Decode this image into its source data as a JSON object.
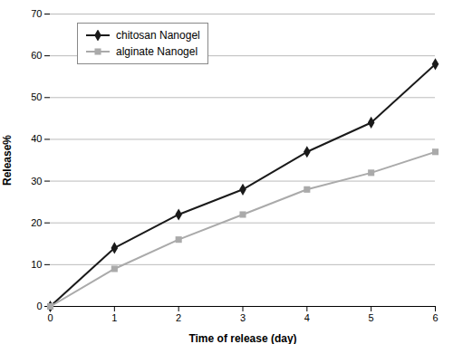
{
  "chart_data": {
    "type": "line",
    "xlabel": "Time of release (day)",
    "ylabel": "Release%",
    "x": [
      0,
      1,
      2,
      3,
      4,
      5,
      6
    ],
    "series": [
      {
        "name": "chitosan Nanogel",
        "color": "#1a1a1a",
        "marker": "diamond",
        "values": [
          0,
          14,
          22,
          28,
          37,
          44,
          58
        ]
      },
      {
        "name": "alginate Nanogel",
        "color": "#aaaaaa",
        "marker": "square",
        "values": [
          0,
          9,
          16,
          22,
          28,
          32,
          37
        ]
      }
    ],
    "xlim": [
      0,
      6
    ],
    "ylim": [
      0,
      70
    ],
    "xticks": [
      0,
      1,
      2,
      3,
      4,
      5,
      6
    ],
    "yticks": [
      0,
      10,
      20,
      30,
      40,
      50,
      60,
      70
    ],
    "grid": true,
    "legend": "upper left"
  }
}
